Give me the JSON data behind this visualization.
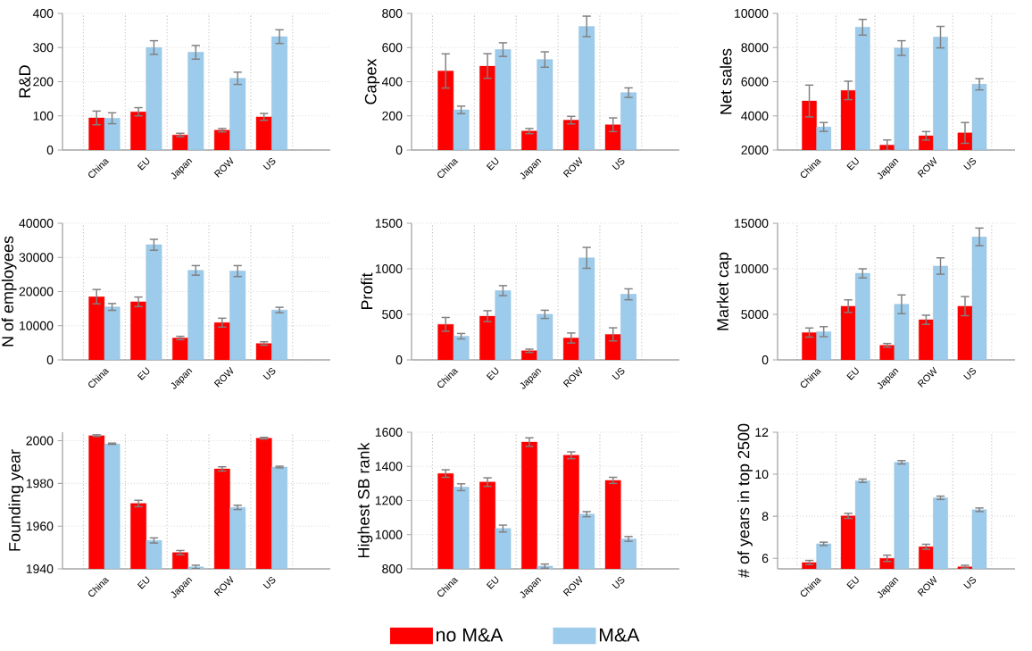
{
  "chart_data": [
    {
      "type": "bar",
      "ylabel": "R&D",
      "categories": [
        "China",
        "EU",
        "Japan",
        "ROW",
        "US"
      ],
      "ylim": [
        0,
        400
      ],
      "yticks": [
        0,
        100,
        200,
        300,
        400
      ],
      "grid": true,
      "series": [
        {
          "color": "#ff0000",
          "values": [
            94,
            112,
            44,
            58,
            97
          ],
          "errors": [
            20,
            12,
            5,
            5,
            10
          ]
        },
        {
          "color": "#9ccbeb",
          "values": [
            93,
            300,
            286,
            210,
            332
          ],
          "errors": [
            16,
            20,
            20,
            18,
            20
          ]
        }
      ]
    },
    {
      "type": "bar",
      "ylabel": "Capex",
      "categories": [
        "China",
        "EU",
        "Japan",
        "ROW",
        "US"
      ],
      "ylim": [
        0,
        800
      ],
      "yticks": [
        0,
        200,
        400,
        600,
        800
      ],
      "grid": true,
      "series": [
        {
          "color": "#ff0000",
          "values": [
            463,
            492,
            111,
            175,
            148
          ],
          "errors": [
            100,
            72,
            15,
            22,
            40
          ]
        },
        {
          "color": "#9ccbeb",
          "values": [
            235,
            588,
            530,
            724,
            336
          ],
          "errors": [
            22,
            40,
            45,
            60,
            28
          ]
        }
      ]
    },
    {
      "type": "bar",
      "ylabel": "Net sales",
      "categories": [
        "China",
        "EU",
        "Japan",
        "ROW",
        "US"
      ],
      "ylim": [
        2000,
        10000
      ],
      "yticks": [
        2000,
        4000,
        6000,
        8000,
        10000
      ],
      "grid": true,
      "series": [
        {
          "color": "#ff0000",
          "values": [
            4870,
            5490,
            2290,
            2830,
            3000
          ],
          "errors": [
            930,
            540,
            300,
            250,
            610
          ]
        },
        {
          "color": "#9ccbeb",
          "values": [
            3350,
            9190,
            7970,
            8610,
            5850
          ],
          "errors": [
            260,
            460,
            430,
            630,
            330
          ]
        }
      ]
    },
    {
      "type": "bar",
      "ylabel": "N of employees",
      "categories": [
        "China",
        "EU",
        "Japan",
        "ROW",
        "US"
      ],
      "ylim": [
        0,
        40000
      ],
      "yticks": [
        0,
        10000,
        20000,
        30000,
        40000
      ],
      "grid": true,
      "series": [
        {
          "color": "#ff0000",
          "values": [
            18500,
            17000,
            6400,
            10900,
            4800
          ],
          "errors": [
            2100,
            1400,
            500,
            1300,
            500
          ]
        },
        {
          "color": "#9ccbeb",
          "values": [
            15500,
            33700,
            26200,
            26000,
            14600
          ],
          "errors": [
            1000,
            1600,
            1400,
            1600,
            800
          ]
        }
      ]
    },
    {
      "type": "bar",
      "ylabel": "Profit",
      "categories": [
        "China",
        "EU",
        "Japan",
        "ROW",
        "US"
      ],
      "ylim": [
        0,
        1500
      ],
      "yticks": [
        0,
        500,
        1000,
        1500
      ],
      "grid": true,
      "series": [
        {
          "color": "#ff0000",
          "values": [
            390,
            480,
            100,
            240,
            280
          ],
          "errors": [
            76,
            60,
            18,
            55,
            72
          ]
        },
        {
          "color": "#9ccbeb",
          "values": [
            260,
            760,
            500,
            1120,
            720
          ],
          "errors": [
            30,
            55,
            45,
            115,
            60
          ]
        }
      ]
    },
    {
      "type": "bar",
      "ylabel": "Market cap",
      "categories": [
        "China",
        "EU",
        "Japan",
        "ROW",
        "US"
      ],
      "ylim": [
        0,
        15000
      ],
      "yticks": [
        0,
        5000,
        10000,
        15000
      ],
      "grid": true,
      "series": [
        {
          "color": "#ff0000",
          "values": [
            3000,
            5900,
            1600,
            4400,
            5900
          ],
          "errors": [
            500,
            690,
            200,
            500,
            1050
          ]
        },
        {
          "color": "#9ccbeb",
          "values": [
            3100,
            9500,
            6100,
            10300,
            13500
          ],
          "errors": [
            550,
            500,
            1030,
            900,
            970
          ]
        }
      ]
    },
    {
      "type": "bar",
      "ylabel": "Founding year",
      "categories": [
        "China",
        "EU",
        "Japan",
        "ROW",
        "US"
      ],
      "ylim": [
        1940,
        2004
      ],
      "yticks": [
        1940,
        1960,
        1980,
        2000
      ],
      "grid": true,
      "series": [
        {
          "color": "#ff0000",
          "values": [
            2002.4,
            1970.6,
            1947.6,
            1986.8,
            2001.2
          ],
          "errors": [
            0.4,
            1.5,
            1,
            1,
            0.4
          ]
        },
        {
          "color": "#9ccbeb",
          "values": [
            1998.6,
            1953.3,
            1940.9,
            1968.8,
            1987.7
          ],
          "errors": [
            0.3,
            1.2,
            0.8,
            1,
            0.4
          ]
        }
      ]
    },
    {
      "type": "bar",
      "ylabel": "Highest SB rank",
      "categories": [
        "China",
        "EU",
        "Japan",
        "ROW",
        "US"
      ],
      "ylim": [
        800,
        1600
      ],
      "yticks": [
        800,
        1000,
        1200,
        1400,
        1600
      ],
      "grid": true,
      "legend": "bottom",
      "series": [
        {
          "name": "no M&A",
          "color": "#ff0000",
          "values": [
            1358,
            1308,
            1542,
            1465,
            1318
          ],
          "errors": [
            22,
            25,
            25,
            20,
            18
          ]
        },
        {
          "name": "M&A",
          "color": "#9ccbeb",
          "values": [
            1278,
            1036,
            816,
            1120,
            975
          ],
          "errors": [
            20,
            20,
            12,
            15,
            14
          ]
        }
      ]
    },
    {
      "type": "bar",
      "ylabel": "# of years in top 2500",
      "categories": [
        "China",
        "EU",
        "Japan",
        "ROW",
        "US"
      ],
      "ylim": [
        5.5,
        12
      ],
      "yticks": [
        6,
        8,
        10,
        12
      ],
      "grid": true,
      "series": [
        {
          "color": "#ff0000",
          "values": [
            5.8,
            8.02,
            6.0,
            6.55,
            5.6
          ],
          "errors": [
            0.1,
            0.12,
            0.15,
            0.12,
            0.07
          ]
        },
        {
          "color": "#9ccbeb",
          "values": [
            6.69,
            9.69,
            10.57,
            8.88,
            8.31
          ],
          "errors": [
            0.08,
            0.08,
            0.08,
            0.08,
            0.085
          ]
        }
      ]
    }
  ]
}
